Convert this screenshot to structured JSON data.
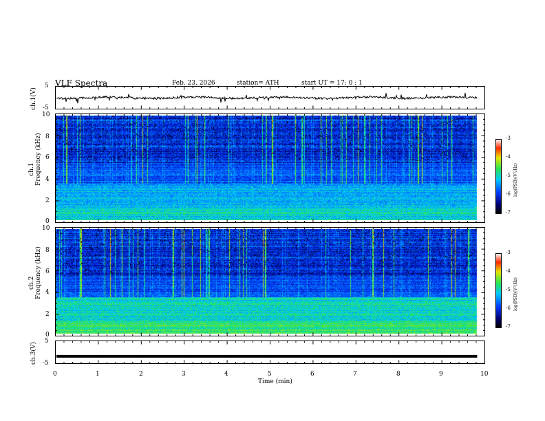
{
  "header": {
    "title": "VLF  Spectra",
    "date": "Feb. 23, 2026",
    "station": "station= ATH",
    "start": "start  UT  =    17: 0   : 1"
  },
  "chart_data": [
    {
      "type": "line",
      "name": "ch1-voltage",
      "ylabel": "ch.1(V)",
      "ylim": [
        -5,
        5
      ],
      "ytick_labels": [
        "5",
        "-5"
      ],
      "x_range_min": [
        0,
        9.83
      ],
      "baseline_v": 0
    },
    {
      "type": "heatmap",
      "name": "ch1-spectrogram",
      "ylabel": "ch.1\nFrequency  (kHz)",
      "ylabel_ch": "ch.1",
      "ylabel_freq": "Frequency  (kHz)",
      "ylim_khz": [
        0,
        10
      ],
      "ytick_labels": [
        "0",
        "2",
        "4",
        "6",
        "8",
        "10"
      ],
      "x_range_min": [
        0,
        9.83
      ],
      "colorbar": {
        "label": "log(PSD)(V²/Hz)",
        "range": [
          -7,
          -3
        ],
        "tick_labels": [
          "-3",
          "-4",
          "-5",
          "-6",
          "-7"
        ]
      }
    },
    {
      "type": "heatmap",
      "name": "ch2-spectrogram",
      "ylabel_ch": "ch.2",
      "ylabel_freq": "Frequency  (kHz)",
      "ylim_khz": [
        0,
        10
      ],
      "ytick_labels": [
        "0",
        "2",
        "4",
        "6",
        "8",
        "10"
      ],
      "x_range_min": [
        0,
        9.83
      ],
      "colorbar": {
        "label": "log(PSD)(V²/Hz)",
        "range": [
          -7,
          -3
        ],
        "tick_labels": [
          "-3",
          "-4",
          "-5",
          "-6",
          "-7"
        ]
      }
    },
    {
      "type": "line",
      "name": "ch3-voltage",
      "ylabel": "ch.3(V)",
      "ylim": [
        -5,
        5
      ],
      "ytick_labels": [
        "5",
        "-5"
      ],
      "x_range_min": [
        0,
        9.83
      ],
      "baseline_v": -1.8
    }
  ],
  "xaxis": {
    "label": "Time  (min)",
    "range": [
      0,
      10
    ],
    "tick_labels": [
      "0",
      "1",
      "2",
      "3",
      "4",
      "5",
      "6",
      "7",
      "8",
      "9",
      "10"
    ]
  }
}
